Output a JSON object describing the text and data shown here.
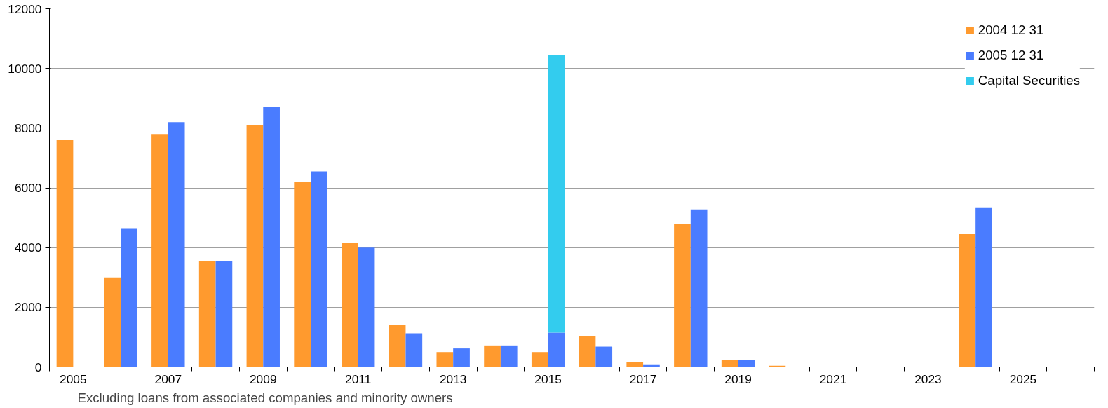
{
  "chart_data": {
    "type": "bar",
    "categories": [
      "2005",
      null,
      "2007",
      null,
      "2009",
      null,
      "2011",
      null,
      "2013",
      null,
      "2015",
      null,
      "2017",
      null,
      "2019",
      null,
      "2021",
      null,
      "2023",
      null,
      "2025",
      null
    ],
    "series": [
      {
        "name": "2004 12 31",
        "color": "#ff9a2e",
        "values": [
          7600,
          3000,
          7800,
          3550,
          8100,
          6200,
          4150,
          1400,
          500,
          720,
          500,
          1020,
          150,
          4780,
          230,
          40,
          0,
          0,
          0,
          4450,
          0,
          0
        ]
      },
      {
        "name": "2005 12 31",
        "color": "#4a7cff",
        "values": [
          null,
          4650,
          8200,
          3550,
          8700,
          6550,
          4000,
          1130,
          620,
          720,
          1150,
          680,
          90,
          5280,
          230,
          0,
          0,
          0,
          0,
          5350,
          0,
          0
        ]
      },
      {
        "name": "Capital Securities",
        "color": "#33ccee",
        "values": [
          null,
          null,
          null,
          null,
          null,
          null,
          null,
          null,
          null,
          null,
          9300,
          null,
          null,
          null,
          null,
          null,
          null,
          null,
          null,
          null,
          null,
          null
        ],
        "base": [
          null,
          null,
          null,
          null,
          null,
          null,
          null,
          null,
          null,
          null,
          1150,
          null,
          null,
          null,
          null,
          null,
          null,
          null,
          null,
          null,
          null,
          null
        ]
      }
    ],
    "ylim": [
      0,
      12000
    ],
    "yticks": [
      0,
      2000,
      4000,
      6000,
      8000,
      10000,
      12000
    ],
    "grid": "y",
    "legend": "top right",
    "annotations": [
      "Excluding loans from associated companies and minority owners"
    ]
  }
}
